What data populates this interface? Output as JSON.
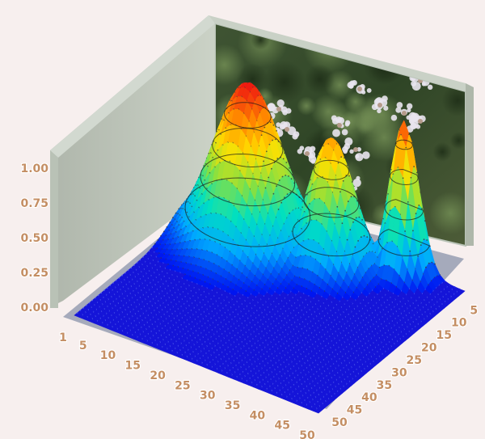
{
  "chart_data": {
    "type": "surface-3d",
    "title": "",
    "z_axis": {
      "ticks": [
        "1.00",
        "0.75",
        "0.50",
        "0.25",
        "0.00"
      ],
      "range": [
        0,
        1
      ]
    },
    "x_axis": {
      "ticks": [
        "1",
        "5",
        "10",
        "15",
        "20",
        "25",
        "30",
        "35",
        "40",
        "45",
        "50"
      ],
      "range": [
        1,
        50
      ]
    },
    "y_axis": {
      "ticks": [
        "5",
        "10",
        "15",
        "20",
        "25",
        "30",
        "35",
        "40",
        "45",
        "50"
      ],
      "range": [
        1,
        50
      ]
    },
    "grid_resolution": 50,
    "peaks": [
      {
        "x": 13,
        "y": 12,
        "height": 1.0,
        "spread": 6
      },
      {
        "x": 28,
        "y": 9,
        "height": 0.8,
        "spread": 4
      },
      {
        "x": 39,
        "y": 3,
        "height": 0.95,
        "spread": 2.5
      }
    ],
    "colormap": [
      "#0000ee",
      "#00aaff",
      "#00e0c0",
      "#88e040",
      "#ffe000",
      "#ff8800",
      "#ee1111"
    ],
    "base_color": "#1515d8",
    "back_wall": "photo of white flowers",
    "contour_lines": true
  }
}
